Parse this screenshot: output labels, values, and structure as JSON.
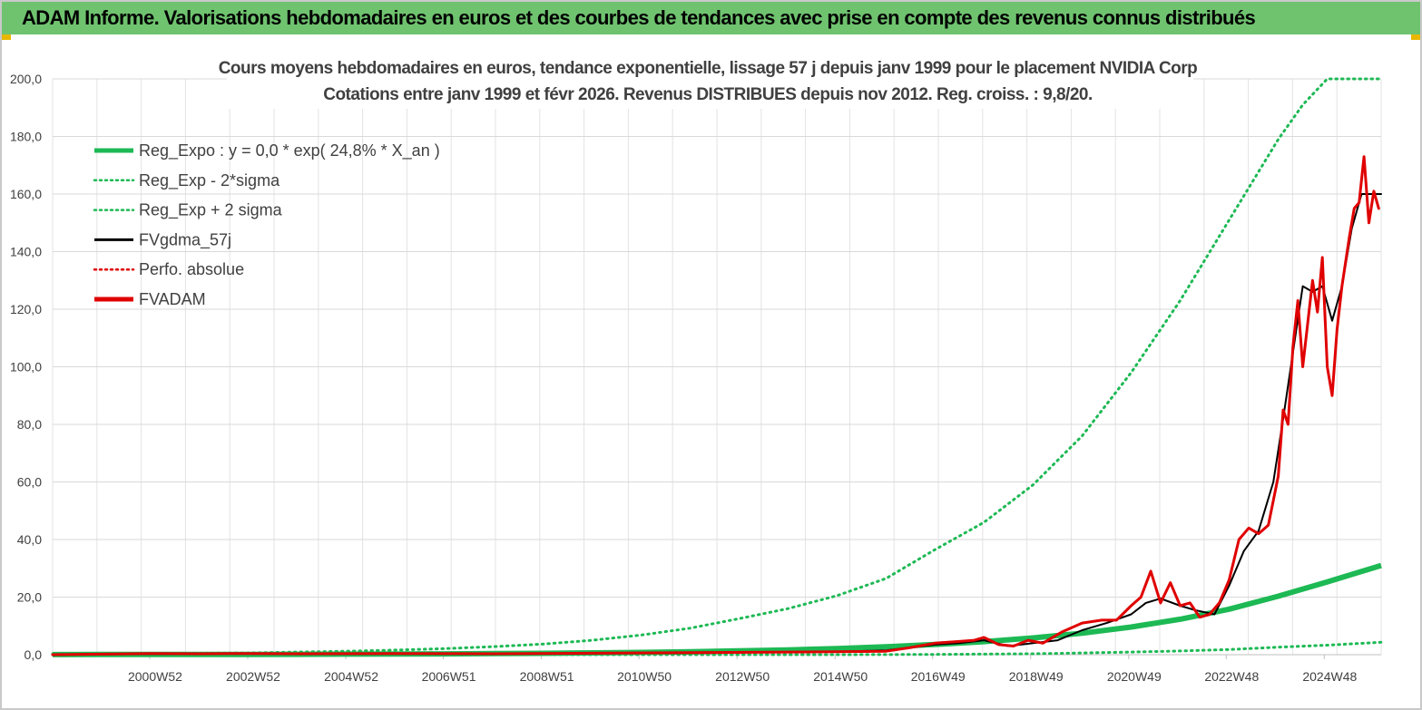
{
  "header": {
    "title": "ADAM Informe. Valorisations hebdomadaires en euros et des courbes de tendances avec prise en compte des revenus connus distribués",
    "background": "#6fc36f"
  },
  "chart_data": {
    "type": "line",
    "title_line1": "Cours moyens hebdomadaires en euros, tendance exponentielle, lissage 57 j depuis janv 1999 pour le placement NVIDIA Corp",
    "title_line2": "Cotations entre janv 1999 et févr 2026. Revenus DISTRIBUES depuis nov 2012. Reg. croiss. : 9,8/20.",
    "ylim": [
      0,
      200
    ],
    "xlim": [
      1999.0,
      2026.1
    ],
    "y_ticks": [
      "0,0",
      "20,0",
      "40,0",
      "60,0",
      "80,0",
      "100,0",
      "120,0",
      "140,0",
      "160,0",
      "180,0",
      "200,0"
    ],
    "x_ticks": [
      {
        "label": "2000W52",
        "x": 2000.98
      },
      {
        "label": "2002W52",
        "x": 2002.98
      },
      {
        "label": "2004W52",
        "x": 2004.98
      },
      {
        "label": "2006W51",
        "x": 2006.97
      },
      {
        "label": "2008W51",
        "x": 2008.97
      },
      {
        "label": "2010W50",
        "x": 2010.96
      },
      {
        "label": "2012W50",
        "x": 2012.96
      },
      {
        "label": "2014W50",
        "x": 2014.96
      },
      {
        "label": "2016W49",
        "x": 2016.95
      },
      {
        "label": "2018W49",
        "x": 2018.95
      },
      {
        "label": "2020W49",
        "x": 2020.95
      },
      {
        "label": "2022W48",
        "x": 2022.94
      },
      {
        "label": "2024W48",
        "x": 2024.94
      }
    ],
    "legend": [
      {
        "label": "Reg_Expo : y = 0,0 * exp( 24,8% *  X_an )",
        "color": "#1db954",
        "style": "solid-thick"
      },
      {
        "label": "Reg_Exp - 2*sigma",
        "color": "#1db954",
        "style": "dotted"
      },
      {
        "label": "Reg_Exp + 2 sigma",
        "color": "#1db954",
        "style": "dotted"
      },
      {
        "label": "FVgdma_57j",
        "color": "#000000",
        "style": "solid"
      },
      {
        "label": "Perfo. absolue",
        "color": "#e00000",
        "style": "dotted"
      },
      {
        "label": "FVADAM",
        "color": "#e00000",
        "style": "solid-thick"
      }
    ],
    "series": [
      {
        "name": "Reg_Expo",
        "color": "#1db954",
        "x": [
          1999,
          2000,
          2001,
          2002,
          2003,
          2004,
          2005,
          2006,
          2007,
          2008,
          2009,
          2010,
          2011,
          2012,
          2013,
          2014,
          2015,
          2016,
          2017,
          2018,
          2019,
          2020,
          2021,
          2022,
          2023,
          2024,
          2025,
          2026.1
        ],
        "values": [
          0.04,
          0.05,
          0.07,
          0.09,
          0.11,
          0.14,
          0.18,
          0.23,
          0.29,
          0.38,
          0.48,
          0.62,
          0.8,
          1.02,
          1.31,
          1.68,
          2.15,
          2.76,
          3.55,
          4.55,
          5.84,
          7.48,
          9.6,
          12.3,
          15.8,
          20.3,
          25.3,
          31.0
        ]
      },
      {
        "name": "Reg_Exp - 2*sigma",
        "color": "#1db954",
        "x": [
          1999,
          2001,
          2003,
          2005,
          2007,
          2009,
          2011,
          2013,
          2015,
          2017,
          2019,
          2020,
          2021,
          2022,
          2023,
          2024,
          2025,
          2026.1
        ],
        "values": [
          0.0,
          0.0,
          0.0,
          0.0,
          0.0,
          0.0,
          0.0,
          0.0,
          0.0,
          0.1,
          0.3,
          0.6,
          0.9,
          1.3,
          1.8,
          2.6,
          3.3,
          4.3
        ]
      },
      {
        "name": "Reg_Exp + 2 sigma",
        "color": "#1db954",
        "x": [
          1999,
          2001,
          2003,
          2004,
          2005,
          2006,
          2007,
          2008,
          2009,
          2010,
          2011,
          2012,
          2013,
          2014,
          2015,
          2016,
          2017,
          2018,
          2019,
          2020,
          2021,
          2022,
          2023,
          2024,
          2024.5,
          2025.0,
          2025.2,
          2025.5,
          2026.1
        ],
        "values": [
          0.3,
          0.4,
          0.6,
          0.9,
          1.2,
          1.6,
          2.1,
          2.8,
          3.7,
          5.0,
          6.8,
          9.2,
          12.5,
          16.0,
          20.5,
          26.5,
          36.5,
          46.0,
          59.0,
          76.0,
          98.0,
          123.0,
          151.0,
          179.0,
          191.0,
          200.0,
          200.0,
          200.0,
          200.0
        ]
      },
      {
        "name": "FVgdma_57j",
        "color": "#000000",
        "x": [
          1999,
          2000,
          2002,
          2004,
          2006,
          2008,
          2010,
          2012,
          2014,
          2015,
          2016,
          2016.5,
          2017,
          2017.5,
          2018,
          2018.5,
          2019,
          2019.5,
          2020,
          2020.5,
          2021,
          2021.3,
          2021.6,
          2022,
          2022.3,
          2022.7,
          2023,
          2023.3,
          2023.6,
          2023.9,
          2024.1,
          2024.3,
          2024.5,
          2024.7,
          2024.9,
          2025.1,
          2025.3,
          2025.5,
          2025.7,
          2026.1
        ],
        "values": [
          0.0,
          0.2,
          0.3,
          0.3,
          0.4,
          0.4,
          0.5,
          0.6,
          0.9,
          1.0,
          1.5,
          2.5,
          3.5,
          4.0,
          5.0,
          3.0,
          4.0,
          5.0,
          8.5,
          11.0,
          14.0,
          18.0,
          19.5,
          17.0,
          15.5,
          14.0,
          24.0,
          36.0,
          43.0,
          60.0,
          82.0,
          105.0,
          128.0,
          126.0,
          128.0,
          116.0,
          128.0,
          148.0,
          160.0,
          160.0
        ]
      },
      {
        "name": "FVADAM",
        "color": "#e00000",
        "x": [
          1999,
          2000,
          2001,
          2002,
          2003,
          2004,
          2006,
          2008,
          2010,
          2012,
          2014,
          2015,
          2016,
          2016.5,
          2017,
          2017.4,
          2017.8,
          2018,
          2018.3,
          2018.6,
          2018.9,
          2019.2,
          2019.6,
          2020,
          2020.4,
          2020.7,
          2021,
          2021.2,
          2021.4,
          2021.6,
          2021.8,
          2022,
          2022.2,
          2022.4,
          2022.6,
          2022.8,
          2023,
          2023.2,
          2023.4,
          2023.6,
          2023.8,
          2024.0,
          2024.1,
          2024.2,
          2024.3,
          2024.4,
          2024.5,
          2024.6,
          2024.7,
          2024.8,
          2024.9,
          2025.0,
          2025.1,
          2025.2,
          2025.3,
          2025.45,
          2025.55,
          2025.65,
          2025.75,
          2025.85,
          2025.95,
          2026.05
        ],
        "values": [
          0.0,
          0.2,
          0.4,
          0.3,
          0.4,
          0.3,
          0.4,
          0.3,
          0.5,
          0.7,
          0.9,
          1.0,
          1.2,
          2.5,
          4.0,
          4.5,
          5.0,
          6.0,
          3.5,
          3.0,
          5.0,
          4.0,
          8.0,
          11.0,
          12.0,
          12.0,
          17.0,
          20.0,
          29.0,
          18.0,
          25.0,
          17.0,
          18.0,
          13.0,
          14.0,
          18.0,
          26.0,
          40.0,
          44.0,
          42.0,
          45.0,
          62.0,
          85.0,
          80.0,
          107.0,
          123.0,
          100.0,
          115.0,
          130.0,
          119.0,
          138.0,
          100.0,
          90.0,
          113.0,
          128.0,
          145.0,
          155.0,
          157.0,
          173.0,
          150.0,
          161.0,
          155.0
        ]
      }
    ]
  }
}
